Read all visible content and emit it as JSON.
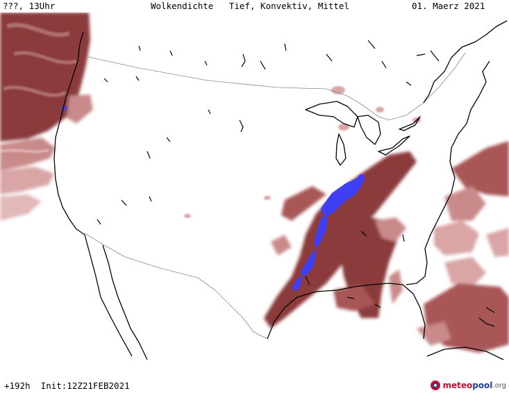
{
  "header": {
    "left": "???, 13Uhr",
    "center": "Wolkendichte   Tief, Konvektiv, Mittel",
    "right": "01. Maerz 2021"
  },
  "footer": {
    "init": "+192h  Init:12Z21FEB2021",
    "logo_text_1": "meteo",
    "logo_text_2": "pool",
    "logo_text_3": ".org"
  },
  "colors": {
    "cloud_dark": "#8b3a3a",
    "cloud_mid": "#a85656",
    "cloud_light": "#d9a5a5",
    "convective": "#3f3ff5",
    "coast": "#000000",
    "border": "#888888"
  },
  "icons": {
    "logo": "meteopool-logo-icon"
  }
}
